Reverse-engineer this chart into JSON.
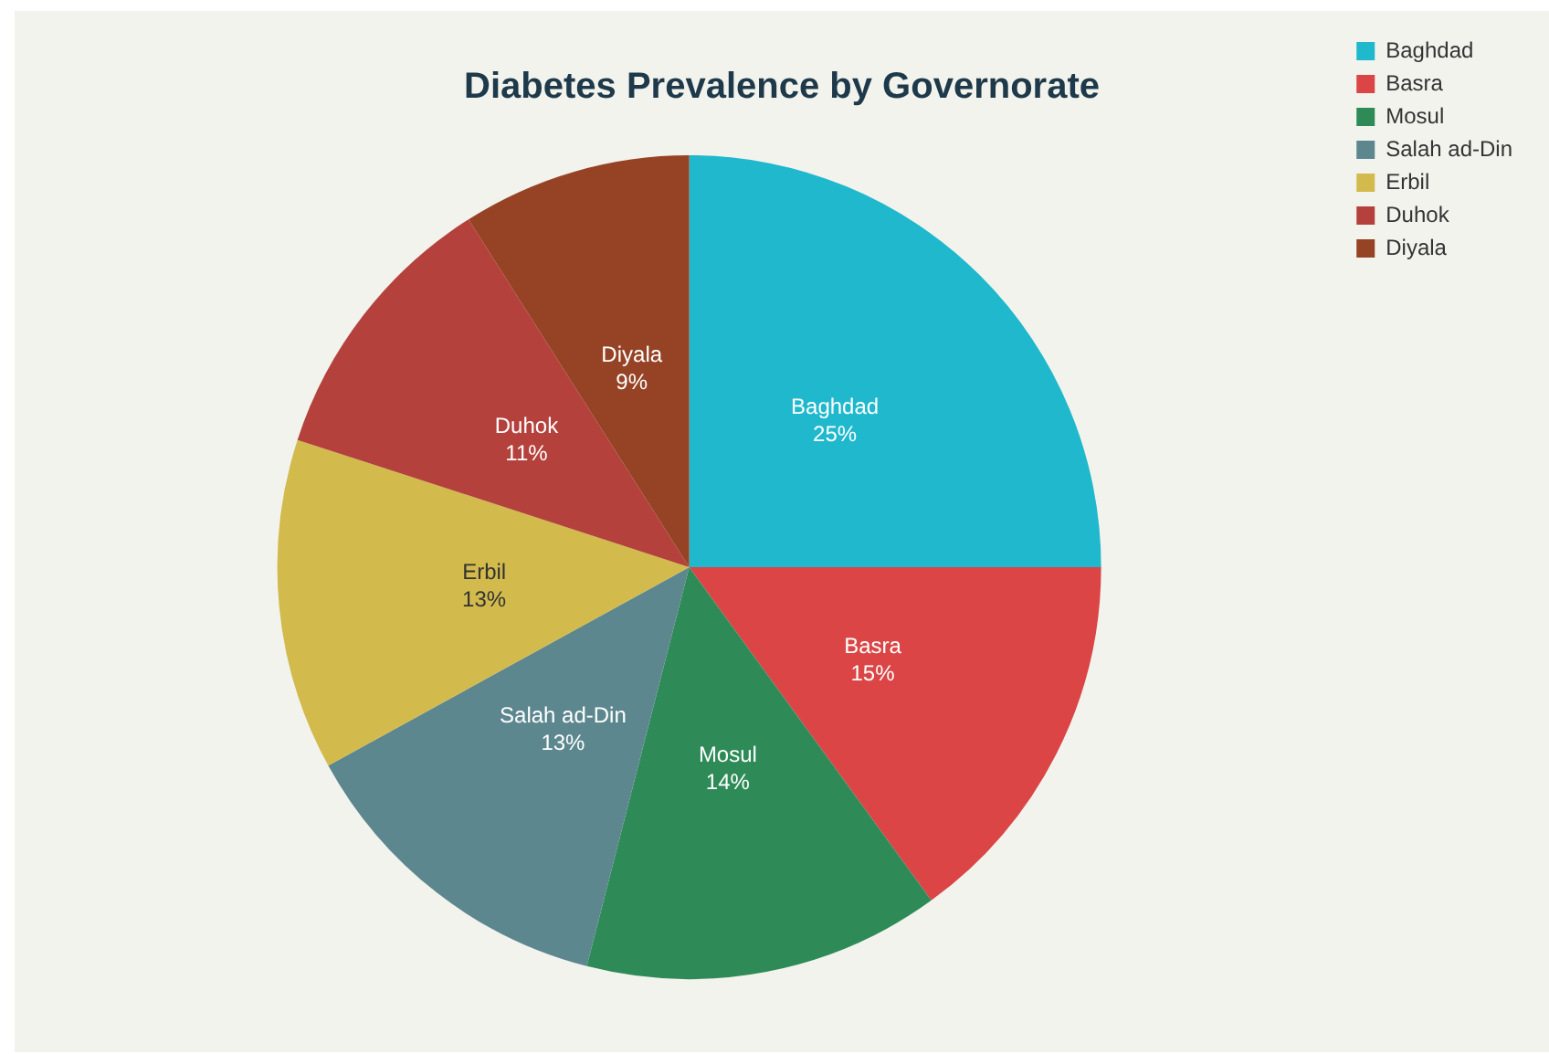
{
  "chart_data": {
    "type": "pie",
    "title": "Diabetes Prevalence by Governorate",
    "categories": [
      "Baghdad",
      "Basra",
      "Mosul",
      "Salah ad-Din",
      "Erbil",
      "Duhok",
      "Diyala"
    ],
    "values": [
      25,
      15,
      14,
      13,
      13,
      11,
      9
    ],
    "colors": [
      "#1fb8cd",
      "#db4545",
      "#2e8b57",
      "#5d878f",
      "#d2ba4c",
      "#b4413c",
      "#964325"
    ],
    "value_labels": [
      "25%",
      "15%",
      "14%",
      "13%",
      "13%",
      "11%",
      "9%"
    ],
    "legend": "top right"
  }
}
